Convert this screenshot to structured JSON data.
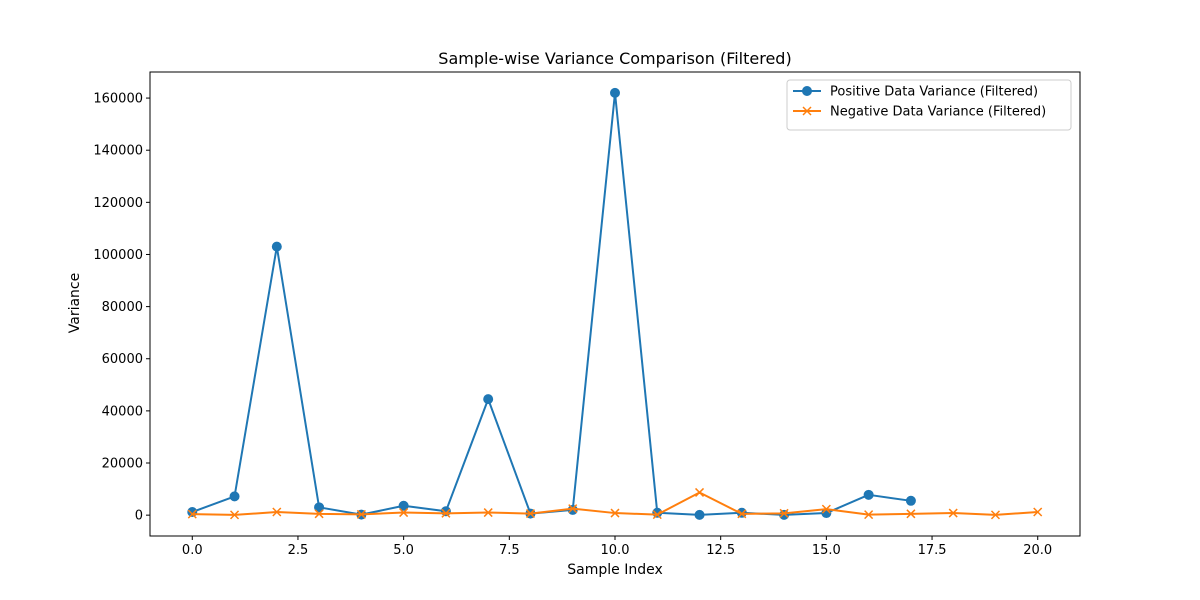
{
  "chart_data": {
    "type": "line",
    "title": "Sample-wise Variance Comparison (Filtered)",
    "xlabel": "Sample Index",
    "ylabel": "Variance",
    "xlim": [
      -1,
      21
    ],
    "ylim": [
      -8000,
      170000
    ],
    "xticks": [
      0.0,
      2.5,
      5.0,
      7.5,
      10.0,
      12.5,
      15.0,
      17.5,
      20.0
    ],
    "xtick_labels": [
      "0.0",
      "2.5",
      "5.0",
      "7.5",
      "10.0",
      "12.5",
      "15.0",
      "17.5",
      "20.0"
    ],
    "yticks": [
      0,
      20000,
      40000,
      60000,
      80000,
      100000,
      120000,
      140000,
      160000
    ],
    "ytick_labels": [
      "0",
      "20000",
      "40000",
      "60000",
      "80000",
      "100000",
      "120000",
      "140000",
      "160000"
    ],
    "grid": false,
    "legend_position": "top-right",
    "series": [
      {
        "name": "Positive Data Variance (Filtered)",
        "color": "#1f77b4",
        "marker": "circle",
        "x": [
          0,
          1,
          2,
          3,
          4,
          5,
          6,
          7,
          8,
          9,
          10,
          11,
          12,
          13,
          14,
          15,
          16,
          17
        ],
        "y": [
          1200,
          7200,
          103000,
          3000,
          200,
          3600,
          1500,
          44500,
          600,
          2000,
          162000,
          900,
          100,
          900,
          100,
          800,
          7800,
          5500
        ]
      },
      {
        "name": "Negative Data Variance (Filtered)",
        "color": "#ff7f0e",
        "marker": "x",
        "x": [
          0,
          1,
          2,
          3,
          4,
          5,
          6,
          7,
          8,
          9,
          10,
          11,
          12,
          13,
          14,
          15,
          16,
          17,
          18,
          19,
          20
        ],
        "y": [
          400,
          100,
          1200,
          500,
          300,
          1000,
          700,
          1000,
          600,
          2500,
          800,
          200,
          8700,
          500,
          700,
          2300,
          200,
          500,
          800,
          100,
          1200
        ]
      }
    ]
  }
}
